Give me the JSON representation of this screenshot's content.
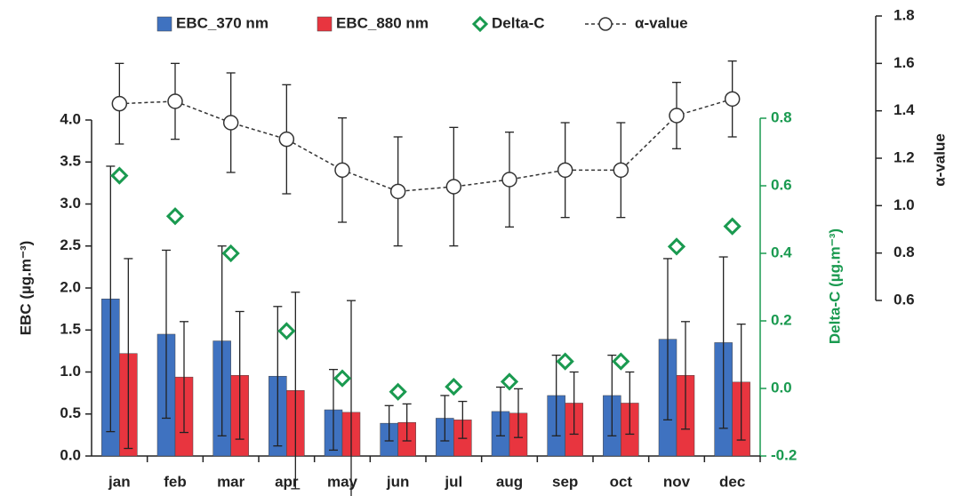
{
  "chart_data": {
    "type": "bar",
    "categories": [
      "jan",
      "feb",
      "mar",
      "apr",
      "may",
      "jun",
      "jul",
      "aug",
      "sep",
      "oct",
      "nov",
      "dec"
    ],
    "ylabel": "EBC (µg.m⁻³)",
    "y2label": "Delta-C (µg.m⁻³)",
    "y3label": "α-value",
    "ylim": [
      0,
      4.0
    ],
    "yticks": [
      {
        "value": 0,
        "label": "0.0"
      },
      0.5,
      {
        "value": 1,
        "label": "1.0"
      },
      1.5,
      {
        "value": 2,
        "label": "2.0"
      },
      2.5,
      {
        "value": 3,
        "label": "3.0"
      },
      3.5,
      {
        "value": 4,
        "label": "4.0"
      }
    ],
    "y2lim": [
      -0.2,
      0.8
    ],
    "y2ticks": [
      -0.2,
      {
        "value": 0,
        "label": "0.0"
      },
      0.2,
      0.4,
      0.6,
      0.8
    ],
    "y3lim": [
      0.6,
      1.8
    ],
    "y3ticks": [
      0.6,
      0.8,
      {
        "value": 1,
        "label": "1.0"
      },
      1.2,
      1.4,
      1.6,
      1.8
    ],
    "series": [
      {
        "name": "EBC_370 nm",
        "type": "bar",
        "color": "#3f72c0",
        "values": [
          1.87,
          1.45,
          1.37,
          0.95,
          0.55,
          0.39,
          0.45,
          0.53,
          0.72,
          0.72,
          1.39,
          1.35
        ],
        "errors": [
          1.58,
          1.0,
          1.13,
          0.83,
          0.48,
          0.21,
          0.27,
          0.29,
          0.48,
          0.48,
          0.96,
          1.02
        ]
      },
      {
        "name": "EBC_880 nm",
        "type": "bar",
        "color": "#e8353f",
        "values": [
          1.22,
          0.94,
          0.96,
          0.78,
          0.52,
          0.4,
          0.43,
          0.51,
          0.63,
          0.63,
          0.96,
          0.88
        ],
        "errors": [
          1.13,
          0.66,
          0.76,
          1.17,
          1.33,
          0.22,
          0.22,
          0.29,
          0.37,
          0.37,
          0.64,
          0.69
        ]
      },
      {
        "name": "Delta-C",
        "type": "scatter",
        "axis": "y2",
        "color": "#1a9a50",
        "values": [
          0.63,
          0.51,
          0.4,
          0.17,
          0.03,
          -0.01,
          0.005,
          0.02,
          0.08,
          0.08,
          0.42,
          0.48
        ]
      },
      {
        "name": "α-value",
        "type": "line",
        "axis": "y3",
        "color": "#333333",
        "values": [
          1.43,
          1.44,
          1.35,
          1.28,
          1.15,
          1.06,
          1.08,
          1.11,
          1.15,
          1.15,
          1.38,
          1.45
        ],
        "errors": [
          0.17,
          0.16,
          0.21,
          0.23,
          0.22,
          0.23,
          0.25,
          0.2,
          0.2,
          0.2,
          0.14,
          0.16
        ]
      }
    ]
  }
}
